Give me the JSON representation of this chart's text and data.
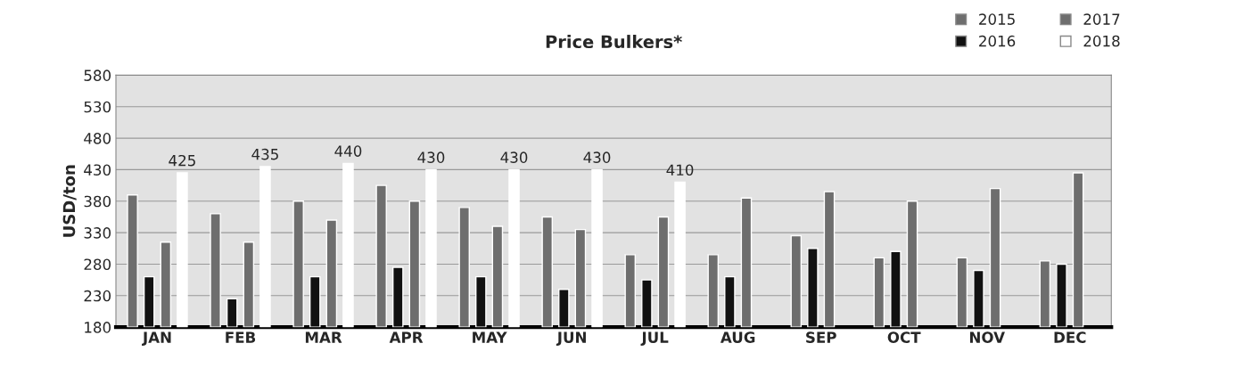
{
  "chart_data": {
    "type": "bar",
    "title": "Price Bulkers*",
    "ylabel": "USD/ton",
    "categories": [
      "JAN",
      "FEB",
      "MAR",
      "APR",
      "MAY",
      "JUN",
      "JUL",
      "AUG",
      "SEP",
      "OCT",
      "NOV",
      "DEC"
    ],
    "series": [
      {
        "name": "2015",
        "color": "#6e6e6e",
        "values": [
          390,
          360,
          380,
          405,
          370,
          355,
          295,
          295,
          325,
          290,
          290,
          285
        ]
      },
      {
        "name": "2016",
        "color": "#111111",
        "values": [
          260,
          225,
          260,
          275,
          260,
          240,
          255,
          260,
          305,
          300,
          270,
          280
        ]
      },
      {
        "name": "2017",
        "color": "#6e6e6e",
        "values": [
          315,
          315,
          350,
          380,
          340,
          335,
          355,
          385,
          395,
          380,
          400,
          425
        ]
      },
      {
        "name": "2018",
        "color": "#ffffff",
        "values": [
          425,
          435,
          440,
          430,
          430,
          430,
          410,
          null,
          null,
          null,
          null,
          null
        ],
        "value_labels": [
          "425",
          "435",
          "440",
          "430",
          "430",
          "430",
          "410",
          null,
          null,
          null,
          null,
          null
        ]
      }
    ],
    "ylim": [
      180,
      580
    ],
    "yticks": [
      180,
      230,
      280,
      330,
      380,
      430,
      480,
      530,
      580
    ],
    "grid": "y",
    "legend": "top right"
  }
}
